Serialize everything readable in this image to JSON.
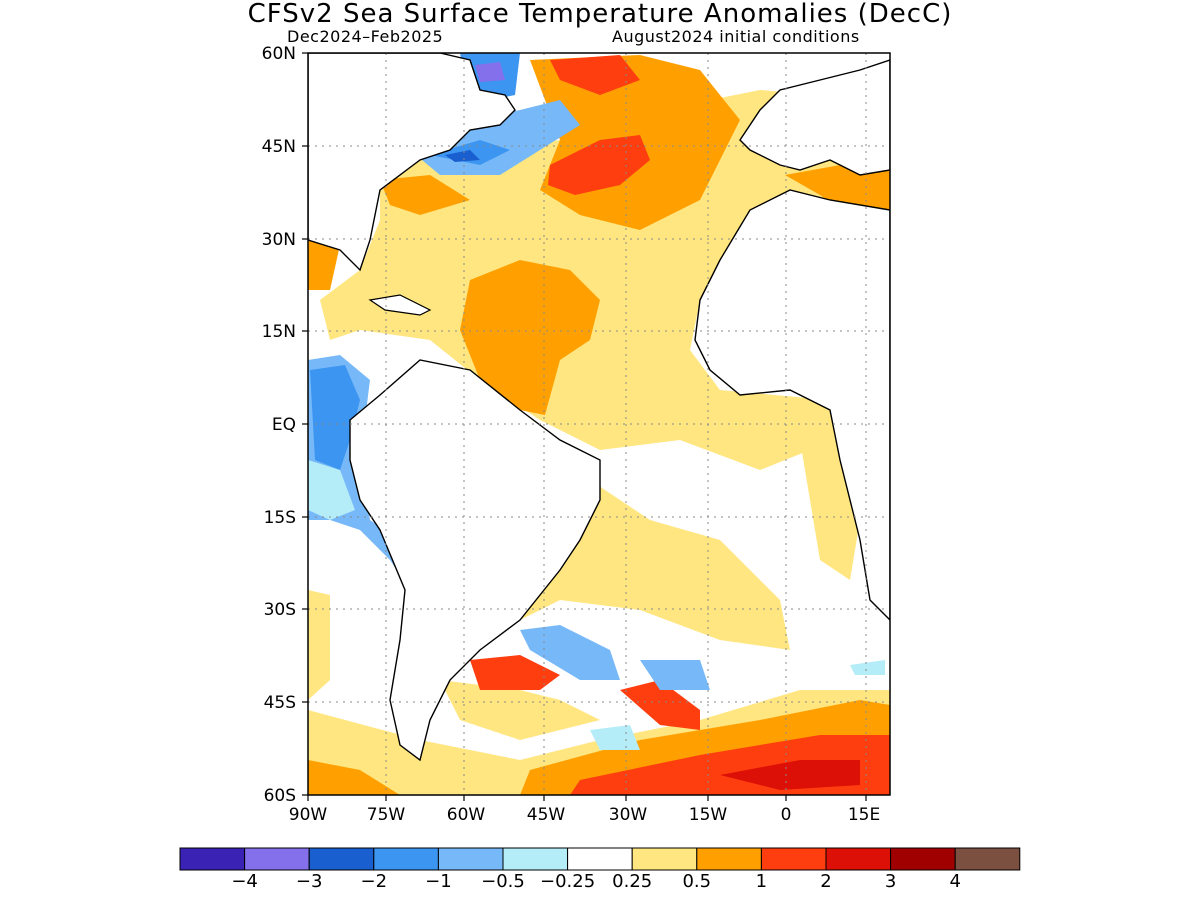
{
  "title": "CFSv2 Sea Surface Temperature Anomalies (DecC)",
  "period": "Dec2024–Feb2025",
  "init": "August2024 initial conditions",
  "lat_labels": [
    "60N",
    "45N",
    "30N",
    "15N",
    "EQ",
    "15S",
    "30S",
    "45S",
    "60S"
  ],
  "lon_labels": [
    "90W",
    "75W",
    "60W",
    "45W",
    "30W",
    "15W",
    "0",
    "15E"
  ],
  "colorbar": {
    "colors": [
      "#3a22b4",
      "#8470ea",
      "#1a5fd0",
      "#3c95f0",
      "#77b9f8",
      "#b4ecf8",
      "#ffffff",
      "#ffe680",
      "#ffa000",
      "#ff3e10",
      "#dc1006",
      "#a10000",
      "#7b5040"
    ],
    "labels": [
      "-4",
      "-3",
      "-2",
      "-1",
      "-0.5",
      "-0.25",
      "0.25",
      "0.5",
      "1",
      "2",
      "3",
      "4"
    ]
  },
  "colors": {
    "land": "#ffffff",
    "warm_weak": "#ffe680",
    "warm_mod": "#ffa000",
    "warm_strong": "#ff3e10",
    "warm_vstrong": "#dc1006",
    "cool_weak": "#b4ecf8",
    "cool_mod": "#77b9f8",
    "cool_strong": "#3c95f0",
    "cool_vstrong": "#1a5fd0",
    "cool_ext": "#8470ea"
  }
}
